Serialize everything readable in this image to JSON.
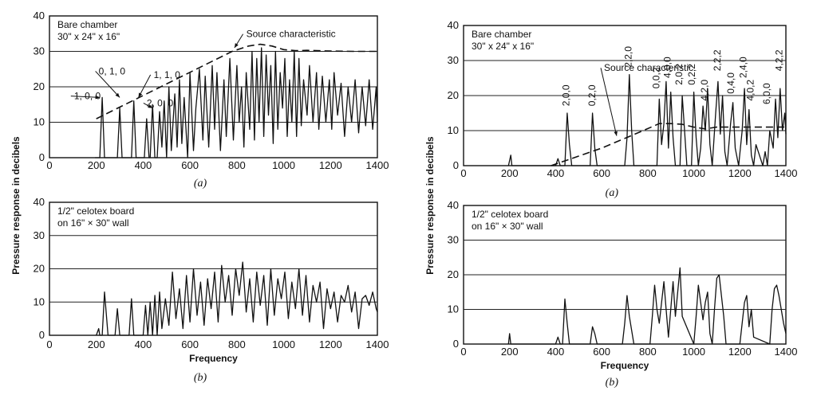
{
  "y_axis_label": "Pressure response in decibels",
  "chart_data": [
    {
      "type": "line",
      "id": "left-a",
      "caption": "(a)",
      "xlabel": "",
      "ylabel": "",
      "xlim": [
        0,
        1400
      ],
      "ylim": [
        0,
        40
      ],
      "x_ticks": [
        "0",
        "200",
        "400",
        "600",
        "800",
        "1000",
        "1200",
        "1400"
      ],
      "y_ticks": [
        "0",
        "10",
        "20",
        "30",
        "40"
      ],
      "grid_y": [
        10,
        20,
        30
      ],
      "panel_label_lines": [
        "Bare chamber",
        "30\" x 24\" x 16\""
      ],
      "annotations": [
        {
          "text": "Source characteristic",
          "x": 840,
          "y": 34,
          "point_x": 790,
          "point_y": 31
        },
        {
          "text": "0, 1, 0",
          "x": 210,
          "y": 23.5,
          "point_x": 300,
          "point_y": 17
        },
        {
          "text": "1, 1, 0",
          "x": 445,
          "y": 22.5,
          "point_x": 380,
          "point_y": 17
        },
        {
          "text": "1, 0, 0",
          "x": 105,
          "y": 16.5,
          "point_x": 215,
          "point_y": 17
        },
        {
          "text": "2, 0, 0",
          "x": 415,
          "y": 14.5,
          "point_x": 440,
          "point_y": 14
        }
      ],
      "series": [
        {
          "style": "dashed",
          "x": [
            200,
            780,
            850,
            900,
            950,
            1000,
            1050,
            1100,
            1200,
            1300,
            1400
          ],
          "y": [
            11,
            30,
            31.5,
            32,
            31.5,
            30.5,
            30.2,
            30.3,
            30.1,
            30,
            30
          ]
        },
        {
          "style": "solid",
          "x": [
            195,
            215,
            225,
            235,
            290,
            300,
            310,
            320,
            350,
            360,
            370,
            380,
            405,
            415,
            425,
            430,
            440,
            450,
            460,
            470,
            480,
            490,
            500,
            510,
            520,
            535,
            545,
            555,
            565,
            575,
            590,
            600,
            615,
            625,
            640,
            655,
            665,
            680,
            695,
            705,
            715,
            730,
            745,
            755,
            770,
            785,
            800,
            810,
            820,
            830,
            840,
            855,
            865,
            875,
            885,
            895,
            905,
            915,
            925,
            935,
            945,
            955,
            965,
            975,
            985,
            995,
            1005,
            1015,
            1025,
            1035,
            1045,
            1055,
            1065,
            1075,
            1085,
            1100,
            1110,
            1125,
            1140,
            1150,
            1165,
            1180,
            1195,
            1205,
            1215,
            1230,
            1245,
            1260,
            1275,
            1290,
            1305,
            1320,
            1335,
            1350,
            1365,
            1380,
            1395,
            1400
          ],
          "y": [
            0,
            0,
            17,
            0,
            0,
            14,
            0,
            0,
            0,
            16,
            0,
            0,
            0,
            11,
            0,
            0,
            15,
            0,
            0,
            13,
            3,
            16,
            0,
            20,
            2,
            18,
            3,
            22,
            4,
            17,
            0,
            24,
            2,
            14,
            25,
            5,
            23,
            3,
            26,
            8,
            24,
            2,
            22,
            6,
            28,
            5,
            26,
            10,
            20,
            3,
            24,
            8,
            30,
            5,
            28,
            10,
            31,
            6,
            29,
            12,
            26,
            4,
            30,
            8,
            24,
            14,
            28,
            6,
            22,
            10,
            30,
            6,
            28,
            9,
            22,
            12,
            26,
            10,
            24,
            8,
            23,
            10,
            22,
            8,
            24,
            12,
            21,
            6,
            20,
            10,
            22,
            7,
            20,
            9,
            22,
            8,
            20,
            10
          ]
        }
      ]
    },
    {
      "type": "line",
      "id": "left-b",
      "caption": "(b)",
      "xlabel": "Frequency",
      "ylabel": "",
      "xlim": [
        0,
        1400
      ],
      "ylim": [
        0,
        40
      ],
      "x_ticks": [
        "0",
        "200",
        "400",
        "600",
        "800",
        "1000",
        "1200",
        "1400"
      ],
      "y_ticks": [
        "0",
        "10",
        "20",
        "30",
        "40"
      ],
      "grid_y": [
        10,
        20,
        30
      ],
      "panel_label_lines": [
        "1/2\" celotex board",
        "on 16\" × 30\" wall"
      ],
      "annotations": [],
      "series": [
        {
          "style": "solid",
          "x": [
            200,
            210,
            215,
            225,
            235,
            250,
            280,
            290,
            300,
            340,
            350,
            360,
            400,
            410,
            420,
            430,
            440,
            450,
            460,
            470,
            480,
            495,
            510,
            525,
            540,
            555,
            570,
            585,
            600,
            615,
            630,
            645,
            660,
            675,
            690,
            705,
            720,
            735,
            750,
            765,
            780,
            795,
            810,
            825,
            840,
            855,
            870,
            885,
            900,
            915,
            930,
            945,
            960,
            975,
            990,
            1005,
            1020,
            1035,
            1050,
            1065,
            1080,
            1095,
            1110,
            1125,
            1140,
            1155,
            1170,
            1185,
            1200,
            1215,
            1230,
            1245,
            1260,
            1275,
            1290,
            1305,
            1320,
            1335,
            1350,
            1365,
            1380,
            1395,
            1400
          ],
          "y": [
            0,
            2,
            0,
            0,
            13,
            0,
            0,
            8,
            0,
            0,
            11,
            0,
            0,
            9,
            0,
            10,
            0,
            12,
            0,
            13,
            2,
            11,
            3,
            19,
            5,
            14,
            2,
            18,
            4,
            20,
            6,
            16,
            3,
            17,
            8,
            19,
            4,
            21,
            10,
            18,
            6,
            20,
            12,
            22,
            7,
            17,
            4,
            19,
            9,
            18,
            3,
            20,
            6,
            17,
            11,
            19,
            5,
            16,
            8,
            20,
            6,
            18,
            4,
            15,
            10,
            16,
            2,
            14,
            8,
            13,
            4,
            12,
            10,
            15,
            7,
            13,
            2,
            11,
            12,
            9,
            13,
            8,
            7
          ]
        }
      ]
    },
    {
      "type": "line",
      "id": "right-a",
      "caption": "(a)",
      "xlabel": "",
      "ylabel": "",
      "xlim": [
        0,
        1400
      ],
      "ylim": [
        0,
        40
      ],
      "x_ticks": [
        "0",
        "200",
        "400",
        "600",
        "800",
        "1000",
        "1200",
        "1400"
      ],
      "y_ticks": [
        "0",
        "10",
        "20",
        "30",
        "40"
      ],
      "grid_y": [
        10,
        20,
        30
      ],
      "panel_label_lines": [
        "Bare chamber",
        "30\" x 24\" x 16\""
      ],
      "annotations": [
        {
          "text": "Source characteristic",
          "x": 610,
          "y": 27,
          "point_x": 665,
          "point_y": 8.5
        },
        {
          "text": "2,0,0",
          "x": 460,
          "y": 17,
          "rotate": true
        },
        {
          "text": "0,2,0",
          "x": 572,
          "y": 17,
          "rotate": true
        },
        {
          "text": "2,2,0",
          "x": 730,
          "y": 28,
          "rotate": true
        },
        {
          "text": "0,0,2",
          "x": 850,
          "y": 22,
          "rotate": true
        },
        {
          "text": "4,0,0",
          "x": 900,
          "y": 25,
          "rotate": true
        },
        {
          "text": "2,0,2",
          "x": 950,
          "y": 23,
          "rotate": true
        },
        {
          "text": "0,2,2",
          "x": 1005,
          "y": 23,
          "rotate": true
        },
        {
          "text": "4,2,0",
          "x": 1060,
          "y": 18.5,
          "rotate": true
        },
        {
          "text": "2,2,2",
          "x": 1115,
          "y": 27,
          "rotate": true
        },
        {
          "text": "0,4,0",
          "x": 1175,
          "y": 20.5,
          "rotate": true
        },
        {
          "text": "2,4,0",
          "x": 1228,
          "y": 25,
          "rotate": true
        },
        {
          "text": "4,0,2",
          "x": 1260,
          "y": 18.5,
          "rotate": true
        },
        {
          "text": "6,0,0",
          "x": 1330,
          "y": 17.5,
          "rotate": true
        },
        {
          "text": "4,2,2",
          "x": 1385,
          "y": 27,
          "rotate": true
        }
      ],
      "series": [
        {
          "style": "dashed",
          "x": [
            380,
            600,
            780,
            850,
            900,
            950,
            1000,
            1050,
            1100,
            1200,
            1300,
            1400
          ],
          "y": [
            0,
            5,
            10,
            12,
            12,
            11.8,
            11,
            10.5,
            11,
            11,
            11,
            11
          ]
        },
        {
          "style": "solid",
          "x": [
            195,
            205,
            210,
            400,
            410,
            420,
            440,
            450,
            460,
            470,
            550,
            560,
            570,
            580,
            700,
            710,
            720,
            730,
            740,
            840,
            850,
            860,
            870,
            880,
            890,
            900,
            910,
            920,
            940,
            950,
            960,
            970,
            990,
            1000,
            1010,
            1020,
            1030,
            1040,
            1050,
            1060,
            1070,
            1080,
            1095,
            1105,
            1115,
            1125,
            1135,
            1145,
            1160,
            1170,
            1180,
            1195,
            1210,
            1220,
            1230,
            1240,
            1250,
            1260,
            1270,
            1300,
            1310,
            1320,
            1330,
            1345,
            1355,
            1365,
            1375,
            1385,
            1395,
            1400
          ],
          "y": [
            0,
            3,
            0,
            0,
            2,
            0,
            0,
            15,
            6,
            0,
            0,
            15,
            5,
            0,
            0,
            8,
            26,
            10,
            0,
            0,
            19,
            6,
            12,
            24,
            5,
            21,
            8,
            0,
            0,
            20,
            10,
            0,
            0,
            21,
            8,
            0,
            5,
            17,
            10,
            22,
            6,
            0,
            15,
            24,
            9,
            20,
            4,
            0,
            12,
            18,
            5,
            0,
            10,
            22,
            6,
            16,
            3,
            0,
            6,
            0,
            4,
            0,
            10,
            5,
            19,
            8,
            22,
            10,
            15,
            9
          ]
        }
      ]
    },
    {
      "type": "line",
      "id": "right-b",
      "caption": "(b)",
      "xlabel": "Frequency",
      "ylabel": "",
      "xlim": [
        0,
        1400
      ],
      "ylim": [
        0,
        40
      ],
      "x_ticks": [
        "0",
        "200",
        "400",
        "600",
        "800",
        "1000",
        "1200",
        "1400"
      ],
      "y_ticks": [
        "0",
        "10",
        "20",
        "30",
        "40"
      ],
      "grid_y": [
        10,
        20,
        30
      ],
      "panel_label_lines": [
        "1/2\" celotex board",
        "on 16\" × 30\" wall"
      ],
      "annotations": [],
      "series": [
        {
          "style": "solid",
          "x": [
            195,
            200,
            205,
            400,
            410,
            420,
            430,
            440,
            450,
            460,
            550,
            560,
            570,
            580,
            690,
            700,
            710,
            720,
            740,
            810,
            820,
            830,
            840,
            850,
            860,
            870,
            880,
            890,
            900,
            910,
            920,
            930,
            940,
            950,
            1000,
            1010,
            1020,
            1030,
            1040,
            1050,
            1060,
            1070,
            1080,
            1090,
            1100,
            1110,
            1120,
            1130,
            1140,
            1200,
            1210,
            1220,
            1230,
            1240,
            1250,
            1260,
            1330,
            1340,
            1350,
            1360,
            1370,
            1380,
            1390,
            1400
          ],
          "y": [
            0,
            3,
            0,
            0,
            2,
            0,
            0,
            13,
            6,
            0,
            0,
            5,
            3,
            0,
            0,
            6,
            14,
            8,
            0,
            0,
            8,
            17,
            10,
            6,
            12,
            18,
            10,
            2,
            10,
            18,
            8,
            15,
            22,
            8,
            0,
            8,
            17,
            12,
            7,
            12,
            15,
            3,
            0,
            10,
            19,
            20,
            14,
            8,
            0,
            0,
            6,
            12,
            14,
            5,
            10,
            2,
            0,
            10,
            16,
            17,
            14,
            10,
            6,
            3
          ]
        }
      ]
    }
  ]
}
